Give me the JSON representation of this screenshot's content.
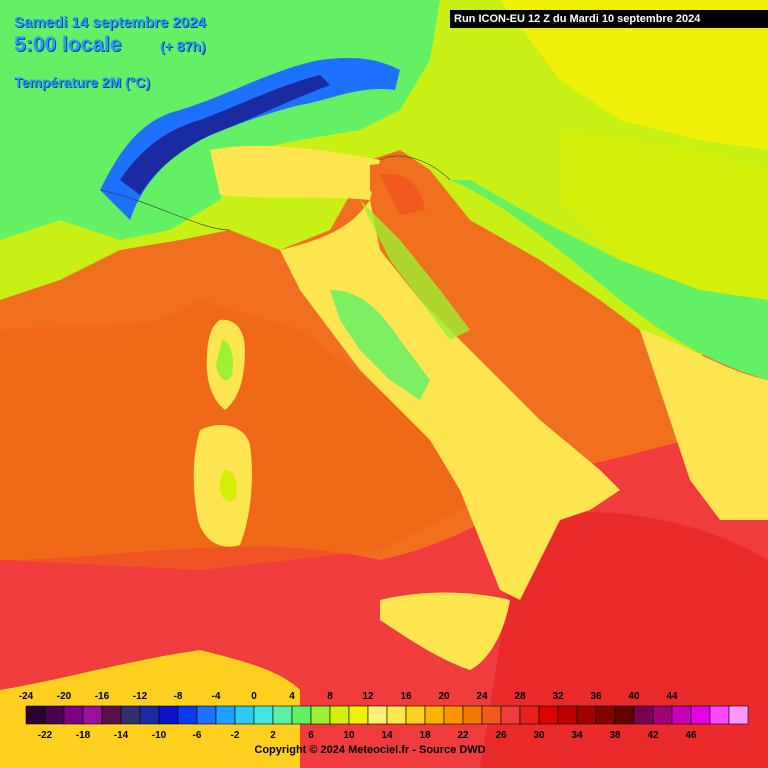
{
  "header": {
    "date": "Samedi 14 septembre 2024",
    "local_time": "5:00 locale",
    "lead": "(+ 87h)",
    "parameter": "Température 2M (°C)"
  },
  "run_banner": "Run ICON-EU 12 Z du Mardi 10 septembre 2024",
  "legend": {
    "top_labels": [
      "-24",
      "-20",
      "-16",
      "-12",
      "-8",
      "-4",
      "0",
      "4",
      "8",
      "12",
      "16",
      "20",
      "24",
      "28",
      "32",
      "36",
      "40",
      "44"
    ],
    "bottom_labels": [
      "-22",
      "-18",
      "-14",
      "-10",
      "-6",
      "-2",
      "2",
      "6",
      "10",
      "14",
      "18",
      "22",
      "26",
      "30",
      "34",
      "38",
      "42",
      "46"
    ],
    "colors": [
      "#2b0030",
      "#4a0050",
      "#7a0080",
      "#9b109b",
      "#5a1048",
      "#30306e",
      "#1a2aa0",
      "#0a12c8",
      "#0a3af0",
      "#1e70ff",
      "#1ea0ff",
      "#2ccaf0",
      "#42e8e0",
      "#5ef0a0",
      "#64f064",
      "#9ef032",
      "#d4f00a",
      "#f0f00a",
      "#fff078",
      "#ffe650",
      "#ffd020",
      "#ffb400",
      "#ff9600",
      "#f07800",
      "#f05a1e",
      "#f03c3c",
      "#e8201e",
      "#dc0000",
      "#be0000",
      "#a00000",
      "#820000",
      "#640000",
      "#7a0050",
      "#a0007a",
      "#c800b4",
      "#e600e6",
      "#ff46ff",
      "#ff96ff"
    ]
  },
  "copyright": "Copyright © 2024 Meteociel.fr - Source DWD",
  "colors": {
    "sea_warm": "#f07020",
    "sea_hot": "#f03c3c",
    "land_mild": "#ffd020",
    "land_cool": "#64f064",
    "mountain_cold": "#1a2aa0",
    "title_blue": "#1ea0ff"
  }
}
